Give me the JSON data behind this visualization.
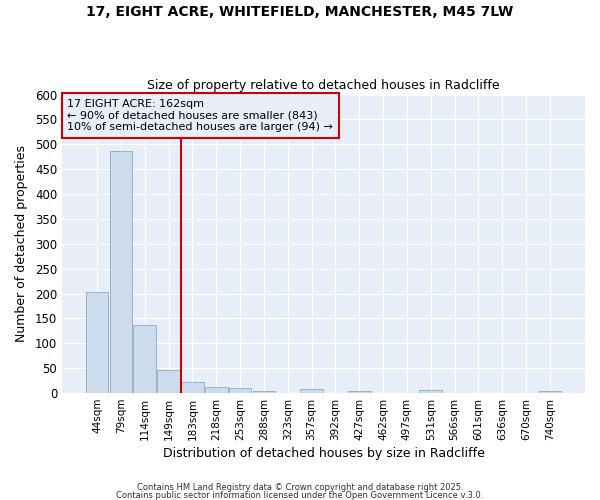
{
  "title_line1": "17, EIGHT ACRE, WHITEFIELD, MANCHESTER, M45 7LW",
  "title_line2": "Size of property relative to detached houses in Radcliffe",
  "xlabel": "Distribution of detached houses by size in Radcliffe",
  "ylabel": "Number of detached properties",
  "categories": [
    "44sqm",
    "79sqm",
    "114sqm",
    "149sqm",
    "183sqm",
    "218sqm",
    "253sqm",
    "288sqm",
    "323sqm",
    "357sqm",
    "392sqm",
    "427sqm",
    "462sqm",
    "497sqm",
    "531sqm",
    "566sqm",
    "601sqm",
    "636sqm",
    "670sqm",
    "740sqm"
  ],
  "values": [
    204,
    487,
    136,
    46,
    22,
    12,
    11,
    5,
    1,
    9,
    1,
    5,
    1,
    1,
    6,
    1,
    1,
    1,
    1,
    5
  ],
  "bar_color": "#ccdcec",
  "bar_edge_color": "#92b4d0",
  "bar_edge_width": 0.7,
  "red_line_x": 3.5,
  "red_line_color": "#cc0000",
  "annotation_text": "17 EIGHT ACRE: 162sqm\n← 90% of detached houses are smaller (843)\n10% of semi-detached houses are larger (94) →",
  "annotation_box_color": "#cc0000",
  "ylim": [
    0,
    600
  ],
  "yticks": [
    0,
    50,
    100,
    150,
    200,
    250,
    300,
    350,
    400,
    450,
    500,
    550,
    600
  ],
  "background_color": "#ffffff",
  "plot_bg_color": "#e8eef8",
  "grid_color": "#ffffff",
  "footer_line1": "Contains HM Land Registry data © Crown copyright and database right 2025.",
  "footer_line2": "Contains public sector information licensed under the Open Government Licence v.3.0."
}
